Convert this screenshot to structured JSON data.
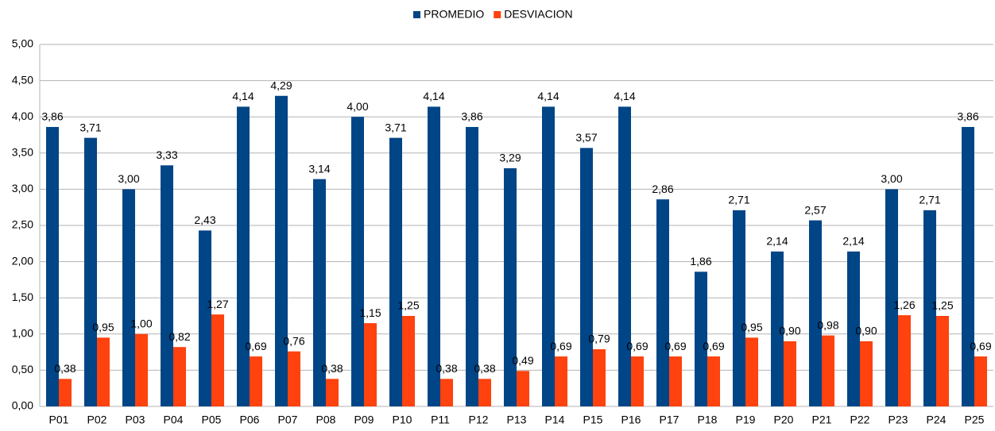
{
  "chart_data": {
    "type": "bar",
    "categories": [
      "P01",
      "P02",
      "P03",
      "P04",
      "P05",
      "P06",
      "P07",
      "P08",
      "P09",
      "P10",
      "P11",
      "P12",
      "P13",
      "P14",
      "P15",
      "P16",
      "P17",
      "P18",
      "P19",
      "P20",
      "P21",
      "P22",
      "P23",
      "P24",
      "P25"
    ],
    "series": [
      {
        "name": "PROMEDIO",
        "color": "#004586",
        "values": [
          3.86,
          3.71,
          3.0,
          3.33,
          2.43,
          4.14,
          4.29,
          3.14,
          4.0,
          3.71,
          4.14,
          3.86,
          3.29,
          4.14,
          3.57,
          4.14,
          2.86,
          1.86,
          2.71,
          2.14,
          2.57,
          2.14,
          3.0,
          2.71,
          3.86
        ],
        "value_labels": [
          "3,86",
          "3,71",
          "3,00",
          "3,33",
          "2,43",
          "4,14",
          "4,29",
          "3,14",
          "4,00",
          "3,71",
          "4,14",
          "3,86",
          "3,29",
          "4,14",
          "3,57",
          "4,14",
          "2,86",
          "1,86",
          "2,71",
          "2,14",
          "2,57",
          "2,14",
          "3,00",
          "2,71",
          "3,86"
        ]
      },
      {
        "name": "DESVIACION",
        "color": "#ff420e",
        "values": [
          0.38,
          0.95,
          1.0,
          0.82,
          1.27,
          0.69,
          0.76,
          0.38,
          1.15,
          1.25,
          0.38,
          0.38,
          0.49,
          0.69,
          0.79,
          0.69,
          0.69,
          0.69,
          0.95,
          0.9,
          0.98,
          0.9,
          1.26,
          1.25,
          0.69
        ],
        "value_labels": [
          "0,38",
          "0,95",
          "1,00",
          "0,82",
          "1,27",
          "0,69",
          "0,76",
          "0,38",
          "1,15",
          "1,25",
          "0,38",
          "0,38",
          "0,49",
          "0,69",
          "0,79",
          "0,69",
          "0,69",
          "0,69",
          "0,95",
          "0,90",
          "0,98",
          "0,90",
          "1,26",
          "1,25",
          "0,69"
        ]
      }
    ],
    "ylim": [
      0,
      5
    ],
    "yticks": [
      {
        "value": 0,
        "label": "0,00"
      },
      {
        "value": 0.5,
        "label": "0,50"
      },
      {
        "value": 1,
        "label": "1,00"
      },
      {
        "value": 1.5,
        "label": "1,50"
      },
      {
        "value": 2,
        "label": "2,00"
      },
      {
        "value": 2.5,
        "label": "2,50"
      },
      {
        "value": 3,
        "label": "3,00"
      },
      {
        "value": 3.5,
        "label": "3,50"
      },
      {
        "value": 4,
        "label": "4,00"
      },
      {
        "value": 4.5,
        "label": "4,50"
      },
      {
        "value": 5,
        "label": "5,00"
      }
    ],
    "grid": true,
    "legend": "top"
  }
}
